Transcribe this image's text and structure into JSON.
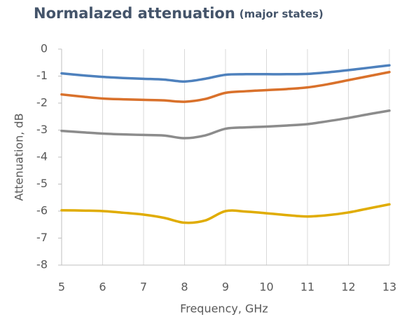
{
  "chart_data": {
    "type": "line",
    "title": "Normalazed attenuation",
    "subtitle": "(major states)",
    "xlabel": "Frequency, GHz",
    "ylabel": "Attenuation, dB",
    "x": [
      5,
      5.5,
      6,
      6.5,
      7,
      7.5,
      8,
      8.5,
      9,
      9.5,
      10,
      10.5,
      11,
      11.5,
      12,
      12.5,
      13
    ],
    "series": [
      {
        "color": "#4e81bd",
        "values": [
          -0.9,
          -0.97,
          -1.03,
          -1.07,
          -1.1,
          -1.13,
          -1.2,
          -1.1,
          -0.95,
          -0.93,
          -0.93,
          -0.93,
          -0.92,
          -0.86,
          -0.78,
          -0.69,
          -0.6
        ]
      },
      {
        "color": "#d9712b",
        "values": [
          -1.68,
          -1.76,
          -1.83,
          -1.86,
          -1.88,
          -1.9,
          -1.95,
          -1.85,
          -1.62,
          -1.56,
          -1.52,
          -1.48,
          -1.42,
          -1.3,
          -1.15,
          -1.0,
          -0.85
        ]
      },
      {
        "color": "#8c8c8c",
        "values": [
          -3.03,
          -3.08,
          -3.13,
          -3.16,
          -3.18,
          -3.2,
          -3.3,
          -3.2,
          -2.95,
          -2.9,
          -2.87,
          -2.83,
          -2.78,
          -2.67,
          -2.55,
          -2.41,
          -2.28
        ]
      },
      {
        "color": "#e0ac00",
        "values": [
          -5.97,
          -5.98,
          -6.0,
          -6.06,
          -6.13,
          -6.25,
          -6.43,
          -6.35,
          -6.0,
          -6.02,
          -6.08,
          -6.15,
          -6.2,
          -6.15,
          -6.05,
          -5.9,
          -5.75
        ]
      }
    ],
    "xlim": [
      5,
      13
    ],
    "xticks": [
      5,
      6,
      7,
      8,
      9,
      10,
      11,
      12,
      13
    ],
    "ylim": [
      -8,
      0
    ],
    "yticks": [
      0,
      -1,
      -2,
      -3,
      -4,
      -5,
      -6,
      -7,
      -8
    ],
    "grid": "x"
  }
}
